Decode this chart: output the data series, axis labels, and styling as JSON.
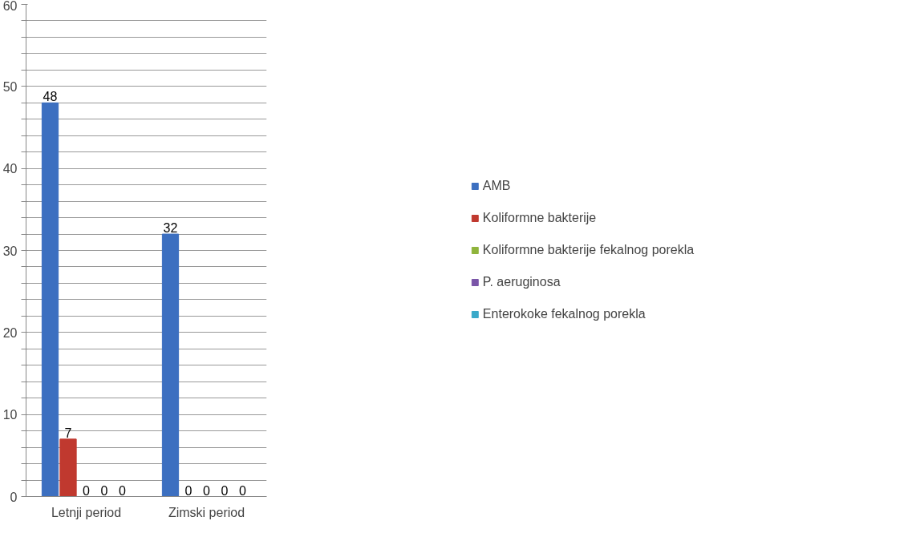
{
  "chart_data": {
    "type": "bar",
    "categories": [
      "Letnji period",
      "Zimski period"
    ],
    "series": [
      {
        "name": "AMB",
        "color": "#3c6fc0",
        "values": [
          48,
          32
        ]
      },
      {
        "name": "Koliformne bakterije",
        "color": "#c0392f",
        "values": [
          7,
          0
        ]
      },
      {
        "name": "Koliformne bakterije fekalnog porekla",
        "color": "#8fb43c",
        "values": [
          0,
          0
        ]
      },
      {
        "name": "P. aeruginosa",
        "color": "#7a55a8",
        "values": [
          0,
          0
        ]
      },
      {
        "name": "Enterokoke fekalnog porekla",
        "color": "#3aa9c9",
        "values": [
          0,
          0
        ]
      }
    ],
    "ylim": [
      0,
      60
    ],
    "yticks": [
      0,
      {
        "value": 2,
        "label": null
      },
      {
        "value": 4,
        "label": null
      },
      {
        "value": 6,
        "label": null
      },
      {
        "value": 8,
        "label": null
      },
      10,
      {
        "value": 12,
        "label": null
      },
      {
        "value": 14,
        "label": null
      },
      {
        "value": 16,
        "label": null
      },
      {
        "value": 18,
        "label": null
      },
      20,
      {
        "value": 22,
        "label": null
      },
      {
        "value": 24,
        "label": null
      },
      {
        "value": 26,
        "label": null
      },
      {
        "value": 28,
        "label": null
      },
      30,
      {
        "value": 32,
        "label": null
      },
      {
        "value": 34,
        "label": null
      },
      {
        "value": 36,
        "label": null
      },
      {
        "value": 38,
        "label": null
      },
      40,
      {
        "value": 42,
        "label": null
      },
      {
        "value": 44,
        "label": null
      },
      {
        "value": 46,
        "label": null
      },
      {
        "value": 48,
        "label": null
      },
      50,
      {
        "value": 52,
        "label": null
      },
      {
        "value": 54,
        "label": null
      },
      {
        "value": 56,
        "label": null
      },
      {
        "value": 58,
        "label": null
      },
      60
    ],
    "grid": "y",
    "legend": "right",
    "data_labels": true
  }
}
